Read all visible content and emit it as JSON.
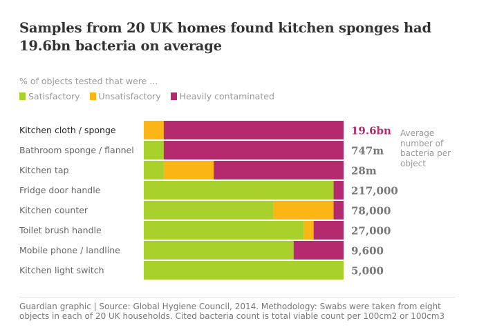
{
  "header": {
    "title": "Samples from 20 UK homes found kitchen sponges had 19.6bn bacteria on average",
    "subtitle": "% of objects tested that were ..."
  },
  "legend": [
    {
      "label": "Satisfactory",
      "color": "#a8d12b"
    },
    {
      "label": "Unsatisfactory",
      "color": "#fbb615"
    },
    {
      "label": "Heavily contaminated",
      "color": "#b5296f"
    }
  ],
  "side_note": "Average number of bacteria per object",
  "source": "Guardian graphic | Source: Global Hygiene Council, 2014. Methodology: Swabs were taken from eight objects in each of 20 UK households. Cited bacteria count is total viable count per 100cm2 or 100cm3",
  "chart_data": {
    "type": "bar",
    "orientation": "horizontal",
    "stacked": true,
    "unit": "%",
    "xlim": [
      0,
      100
    ],
    "categories": [
      "Kitchen cloth / sponge",
      "Bathroom sponge / flannel",
      "Kitchen tap",
      "Fridge door handle",
      "Kitchen counter",
      "Toilet brush handle",
      "Mobile phone / landline",
      "Kitchen light switch"
    ],
    "series": [
      {
        "name": "Satisfactory",
        "color": "#a8d12b",
        "values": [
          0,
          10,
          10,
          95,
          65,
          80,
          75,
          100
        ]
      },
      {
        "name": "Unsatisfactory",
        "color": "#fbb615",
        "values": [
          10,
          0,
          25,
          0,
          30,
          5,
          0,
          0
        ]
      },
      {
        "name": "Heavily contaminated",
        "color": "#b5296f",
        "values": [
          90,
          90,
          65,
          5,
          5,
          15,
          25,
          0
        ]
      }
    ],
    "bacteria_counts": [
      "19.6bn",
      "747m",
      "28m",
      "217,000",
      "78,000",
      "27,000",
      "9,600",
      "5,000"
    ],
    "highlight_index": 0,
    "highlight_color": "#b5296f"
  }
}
